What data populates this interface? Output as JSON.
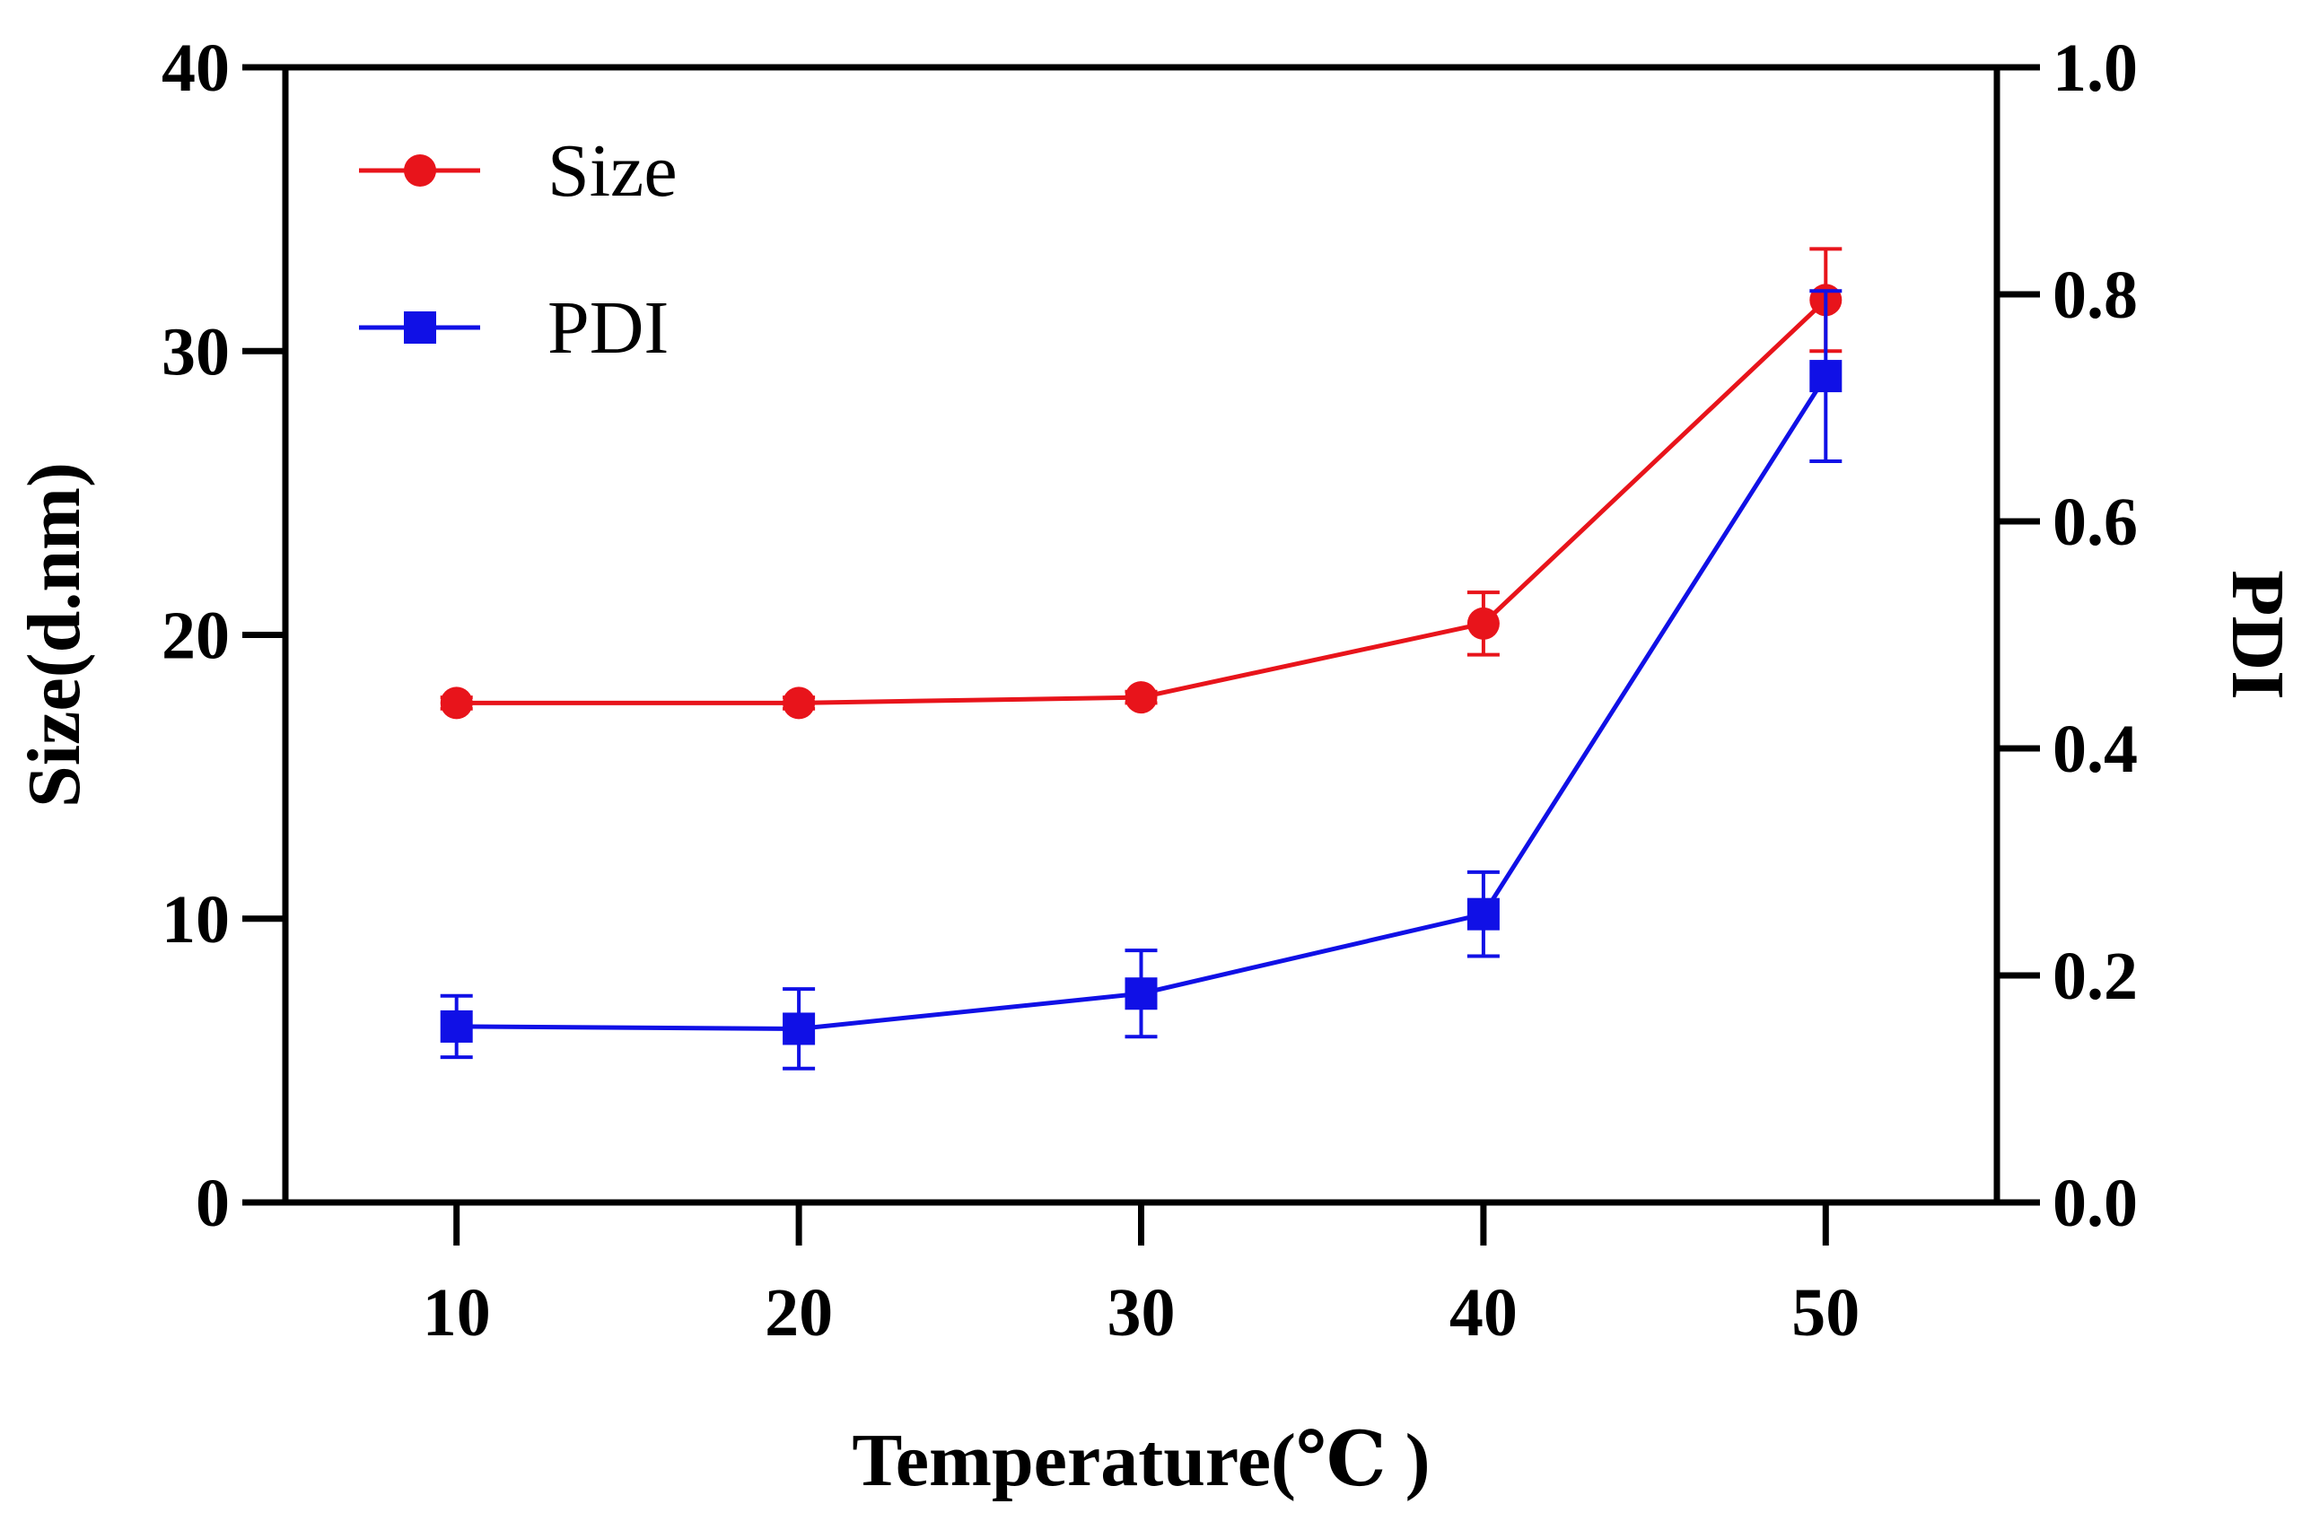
{
  "chart_data": {
    "type": "line",
    "title": "",
    "xlabel": "Temperature(℃ )",
    "ylabel": "Size(d.nm)",
    "y2label": "PDI",
    "x": [
      10,
      20,
      30,
      40,
      50
    ],
    "x_tick_labels": [
      "10",
      "20",
      "30",
      "40",
      "50"
    ],
    "xlim": [
      5,
      55
    ],
    "ylim": [
      0,
      40
    ],
    "y_ticks": [
      0,
      10,
      20,
      30,
      40
    ],
    "y_tick_labels": [
      "0",
      "10",
      "20",
      "30",
      "40"
    ],
    "y2lim": [
      0,
      1.0
    ],
    "y2_ticks": [
      0,
      0.2,
      0.4,
      0.6,
      0.8,
      1.0
    ],
    "y2_tick_labels": [
      "0.0",
      "0.2",
      "0.4",
      "0.6",
      "0.8",
      "1.0"
    ],
    "grid": false,
    "legend_position": "top-left",
    "series": [
      {
        "name": "Size",
        "axis": "left",
        "marker": "circle",
        "color": "#e8141b",
        "values": [
          17.6,
          17.6,
          17.8,
          20.4,
          31.8
        ],
        "errors": [
          0.2,
          0.2,
          0.2,
          1.1,
          1.8
        ]
      },
      {
        "name": "PDI",
        "axis": "right",
        "marker": "square",
        "color": "#1010e6",
        "values": [
          0.155,
          0.153,
          0.184,
          0.254,
          0.728
        ],
        "errors": [
          0.027,
          0.035,
          0.038,
          0.037,
          0.075
        ]
      }
    ]
  }
}
